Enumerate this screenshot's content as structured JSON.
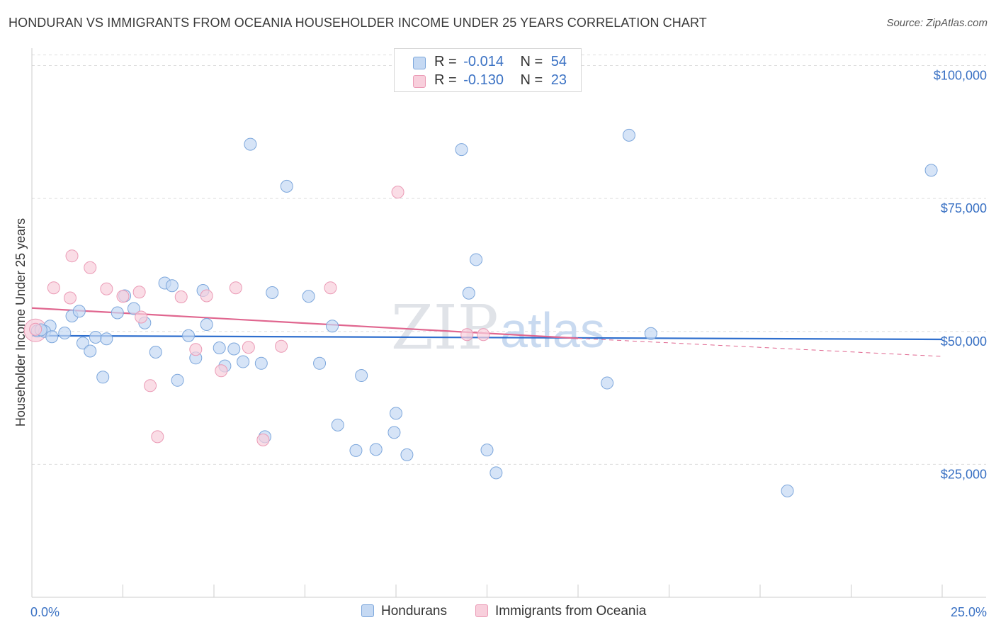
{
  "title": "HONDURAN VS IMMIGRANTS FROM OCEANIA HOUSEHOLDER INCOME UNDER 25 YEARS CORRELATION CHART",
  "source": "Source: ZipAtlas.com",
  "legend": {
    "r_label": "R =",
    "n_label": "N =",
    "series": [
      {
        "r": "-0.014",
        "n": "54"
      },
      {
        "r": "-0.130",
        "n": "23"
      }
    ]
  },
  "bottom_legend": [
    "Hondurans",
    "Immigrants from Oceania"
  ],
  "watermark": {
    "zip": "ZIP",
    "atlas": "atlas"
  },
  "colors": {
    "blue_fill": "#c5d9f3",
    "blue_stroke": "#7da7dc",
    "blue_line": "#2f6fce",
    "pink_fill": "#f8cfdc",
    "pink_stroke": "#eb9bb6",
    "pink_line": "#e0668f",
    "tick_text": "#3b72c4",
    "grid": "#dddddd"
  },
  "chart_data": {
    "type": "scatter",
    "title": "HONDURAN VS IMMIGRANTS FROM OCEANIA HOUSEHOLDER INCOME UNDER 25 YEARS CORRELATION CHART",
    "xlabel": "",
    "ylabel": "Householder Income Under 25 years",
    "xlim": [
      0,
      25
    ],
    "ylim": [
      0,
      103000
    ],
    "x_tick_labels": [
      {
        "value": 0,
        "label": "0.0%"
      },
      {
        "value": 25,
        "label": "25.0%"
      }
    ],
    "y_ticks": [
      {
        "value": 25000,
        "label": "$25,000"
      },
      {
        "value": 50000,
        "label": "$50,000"
      },
      {
        "value": 75000,
        "label": "$75,000"
      },
      {
        "value": 100000,
        "label": "$100,000"
      }
    ],
    "series": [
      {
        "name": "Hondurans",
        "color": "blue",
        "points": [
          [
            0.15,
            50100
          ],
          [
            0.5,
            51000
          ],
          [
            0.35,
            50000
          ],
          [
            0.55,
            49000
          ],
          [
            0.9,
            49700
          ],
          [
            1.1,
            52900
          ],
          [
            1.3,
            53800
          ],
          [
            1.4,
            47800
          ],
          [
            1.6,
            46300
          ],
          [
            1.75,
            48900
          ],
          [
            1.95,
            41400
          ],
          [
            2.05,
            48600
          ],
          [
            2.35,
            53500
          ],
          [
            2.55,
            56700
          ],
          [
            2.8,
            54300
          ],
          [
            3.1,
            51600
          ],
          [
            3.4,
            46100
          ],
          [
            3.65,
            59100
          ],
          [
            3.85,
            58600
          ],
          [
            4.0,
            40800
          ],
          [
            4.3,
            49200
          ],
          [
            4.5,
            45000
          ],
          [
            4.7,
            57700
          ],
          [
            4.8,
            51300
          ],
          [
            5.15,
            46900
          ],
          [
            5.3,
            43500
          ],
          [
            5.55,
            46700
          ],
          [
            5.8,
            44300
          ],
          [
            6.0,
            85200
          ],
          [
            6.3,
            44000
          ],
          [
            6.4,
            30200
          ],
          [
            6.6,
            57300
          ],
          [
            7.0,
            77300
          ],
          [
            7.6,
            56600
          ],
          [
            7.9,
            44000
          ],
          [
            8.25,
            51000
          ],
          [
            8.4,
            32400
          ],
          [
            8.9,
            27600
          ],
          [
            9.05,
            41700
          ],
          [
            9.45,
            27800
          ],
          [
            9.95,
            31000
          ],
          [
            10.0,
            34600
          ],
          [
            10.3,
            26800
          ],
          [
            11.8,
            84200
          ],
          [
            12.0,
            57200
          ],
          [
            12.2,
            63500
          ],
          [
            12.5,
            27700
          ],
          [
            12.75,
            23400
          ],
          [
            15.8,
            40300
          ],
          [
            16.4,
            86900
          ],
          [
            17.0,
            49600
          ],
          [
            20.75,
            20000
          ],
          [
            24.7,
            80300
          ],
          [
            0.25,
            50300
          ]
        ],
        "trend": {
          "x": [
            0,
            25
          ],
          "y": [
            49200,
            48500
          ]
        }
      },
      {
        "name": "Immigrants from Oceania",
        "color": "pink",
        "points": [
          [
            0.1,
            50400
          ],
          [
            0.6,
            58200
          ],
          [
            1.05,
            56300
          ],
          [
            1.1,
            64200
          ],
          [
            1.6,
            62000
          ],
          [
            2.05,
            58000
          ],
          [
            2.5,
            56600
          ],
          [
            2.95,
            57400
          ],
          [
            3.0,
            52700
          ],
          [
            3.25,
            39800
          ],
          [
            3.45,
            30200
          ],
          [
            4.1,
            56500
          ],
          [
            4.5,
            46600
          ],
          [
            4.8,
            56700
          ],
          [
            5.2,
            42600
          ],
          [
            5.6,
            58200
          ],
          [
            5.95,
            47000
          ],
          [
            6.35,
            29600
          ],
          [
            6.85,
            47200
          ],
          [
            8.2,
            58200
          ],
          [
            10.05,
            76200
          ],
          [
            11.95,
            49400
          ],
          [
            12.4,
            49400
          ]
        ],
        "trend": {
          "x": [
            0,
            15
          ],
          "y": [
            54400,
            48700
          ]
        },
        "trend_dashed": {
          "x": [
            15,
            25
          ],
          "y": [
            48700,
            45300
          ]
        }
      }
    ]
  }
}
